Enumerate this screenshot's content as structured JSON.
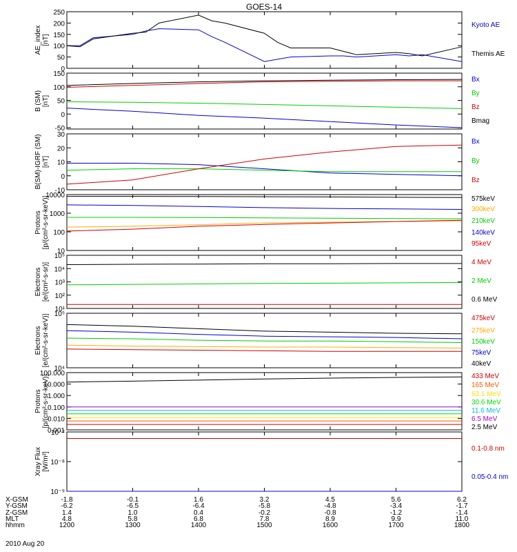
{
  "title": "GOES-14",
  "date_label": "2010 Aug 20",
  "chart_data": [
    {
      "type": "line",
      "ylabel": [
        "AE_index",
        "[nT]"
      ],
      "yscale": "linear",
      "ylim": [
        0,
        250
      ],
      "yticks": [
        0,
        50,
        100,
        150,
        200,
        250
      ],
      "yticklabels": [
        "0",
        "50",
        "100",
        "150",
        "200",
        "250"
      ],
      "series": [
        {
          "name": "Kyoto AE",
          "color": "#0000cc",
          "x": [
            1200,
            1220,
            1240,
            1300,
            1320,
            1340,
            1400,
            1420,
            1440,
            1500,
            1520,
            1540,
            1600,
            1620,
            1640,
            1700,
            1720,
            1740,
            1800
          ],
          "values": [
            100,
            100,
            135,
            150,
            165,
            175,
            170,
            140,
            115,
            30,
            40,
            50,
            55,
            55,
            50,
            60,
            55,
            60,
            30
          ]
        },
        {
          "name": "Themis AE",
          "color": "#000000",
          "x": [
            1200,
            1220,
            1240,
            1300,
            1320,
            1340,
            1400,
            1420,
            1440,
            1500,
            1520,
            1540,
            1600,
            1620,
            1640,
            1700,
            1720,
            1740,
            1800
          ],
          "values": [
            100,
            95,
            130,
            155,
            160,
            200,
            235,
            210,
            200,
            155,
            115,
            90,
            90,
            75,
            60,
            70,
            65,
            55,
            95
          ]
        }
      ]
    },
    {
      "type": "line",
      "ylabel": [
        "B (SM)",
        "[nT]"
      ],
      "yscale": "linear",
      "ylim": [
        -55,
        150
      ],
      "yticks": [
        -50,
        0,
        50,
        100,
        150
      ],
      "yticklabels": [
        "-50",
        "0",
        "50",
        "100",
        "150"
      ],
      "series": [
        {
          "name": "Bx",
          "color": "#0000cc",
          "x": [
            1200,
            1300,
            1400,
            1500,
            1600,
            1700,
            1800
          ],
          "values": [
            22,
            10,
            -5,
            -15,
            -28,
            -40,
            -50
          ]
        },
        {
          "name": "By",
          "color": "#00cc00",
          "x": [
            1200,
            1300,
            1400,
            1500,
            1600,
            1700,
            1800
          ],
          "values": [
            45,
            43,
            40,
            35,
            30,
            25,
            20
          ]
        },
        {
          "name": "Bz",
          "color": "#cc0000",
          "x": [
            1200,
            1300,
            1400,
            1500,
            1600,
            1700,
            1800
          ],
          "values": [
            98,
            105,
            112,
            118,
            120,
            122,
            122
          ]
        },
        {
          "name": "Bmag",
          "color": "#000000",
          "x": [
            1200,
            1300,
            1400,
            1500,
            1600,
            1700,
            1800
          ],
          "values": [
            105,
            112,
            118,
            122,
            124,
            126,
            127
          ]
        }
      ]
    },
    {
      "type": "line",
      "ylabel": [
        "B(SM)-IGRF (SM)",
        "[nT]"
      ],
      "yscale": "linear",
      "ylim": [
        -10,
        30
      ],
      "yticks": [
        -10,
        0,
        10,
        20,
        30
      ],
      "yticklabels": [
        "-10",
        "0",
        "10",
        "20",
        "30"
      ],
      "series": [
        {
          "name": "Bx",
          "color": "#0000cc",
          "x": [
            1200,
            1300,
            1400,
            1500,
            1600,
            1700,
            1800
          ],
          "values": [
            9,
            9,
            8,
            5,
            2,
            1,
            0
          ]
        },
        {
          "name": "By",
          "color": "#00cc00",
          "x": [
            1200,
            1300,
            1400,
            1500,
            1600,
            1700,
            1800
          ],
          "values": [
            4,
            5,
            5,
            4,
            3,
            3,
            3
          ]
        },
        {
          "name": "Bz",
          "color": "#cc0000",
          "x": [
            1200,
            1300,
            1400,
            1500,
            1600,
            1700,
            1800
          ],
          "values": [
            -6,
            -3,
            5,
            12,
            17,
            21,
            22
          ]
        }
      ]
    },
    {
      "type": "line",
      "ylabel": [
        "Protons",
        "[p/(cm²-s-sr-keV)]"
      ],
      "yscale": "log",
      "ylim": [
        10,
        10000
      ],
      "yticks": [
        10,
        100,
        1000,
        10000
      ],
      "yticklabels": [
        "10",
        "100",
        "1000",
        "10000"
      ],
      "series": [
        {
          "name": "575keV",
          "color": "#000000",
          "x": [
            1200,
            1300,
            1400,
            1500,
            1600,
            1700,
            1800
          ],
          "values": [
            8000,
            8000,
            7900,
            7700,
            7500,
            7200,
            7000
          ]
        },
        {
          "name": "300keV",
          "color": "#ffaa00",
          "x": [
            1200,
            1300,
            1400,
            1500,
            1600,
            1700,
            1800
          ],
          "values": [
            180,
            200,
            240,
            300,
            330,
            360,
            390
          ]
        },
        {
          "name": "210keV",
          "color": "#00cc00",
          "x": [
            1200,
            1300,
            1400,
            1500,
            1600,
            1700,
            1800
          ],
          "values": [
            600,
            600,
            590,
            560,
            540,
            520,
            500
          ]
        },
        {
          "name": "140keV",
          "color": "#0000cc",
          "x": [
            1200,
            1300,
            1400,
            1500,
            1600,
            1700,
            1800
          ],
          "values": [
            2800,
            2600,
            2300,
            2000,
            1800,
            1700,
            1600
          ]
        },
        {
          "name": "95keV",
          "color": "#cc0000",
          "x": [
            1200,
            1300,
            1400,
            1500,
            1600,
            1700,
            1800
          ],
          "values": [
            110,
            140,
            200,
            250,
            300,
            360,
            420
          ]
        }
      ]
    },
    {
      "type": "line",
      "ylabel": [
        "Electrons",
        "[e/(cm²-s-sr)]"
      ],
      "yscale": "log",
      "ylim": [
        10,
        100000
      ],
      "yticks": [
        10,
        100,
        1000,
        10000,
        100000
      ],
      "yticklabels": [
        "10¹",
        "10²",
        "10³",
        "10⁴",
        "10⁵"
      ],
      "series": [
        {
          "name": "4 MeV",
          "color": "#cc0000",
          "x": [
            1200,
            1300,
            1400,
            1500,
            1600,
            1700,
            1800
          ],
          "values": [
            20,
            20,
            20,
            20,
            20,
            20,
            20
          ]
        },
        {
          "name": "2 MeV",
          "color": "#00cc00",
          "x": [
            1200,
            1300,
            1400,
            1500,
            1600,
            1700,
            1800
          ],
          "values": [
            600,
            650,
            700,
            760,
            800,
            850,
            900
          ]
        },
        {
          "name": "0.6 MeV",
          "color": "#000000",
          "x": [
            1200,
            1300,
            1400,
            1500,
            1600,
            1700,
            1800
          ],
          "values": [
            20000,
            21000,
            22000,
            23000,
            23000,
            24000,
            24000
          ]
        }
      ]
    },
    {
      "type": "line",
      "ylabel": [
        "Electrons",
        "[e/(cm²-s-sr-keV)]"
      ],
      "yscale": "log",
      "ylim": [
        10000,
        100000
      ],
      "yticks": [
        10000,
        100000
      ],
      "yticklabels": [
        "10⁴",
        "10⁵"
      ],
      "series": [
        {
          "name": "475keV",
          "color": "#cc0000",
          "x": [
            1200,
            1300,
            1400,
            1500,
            1600,
            1700,
            1800
          ],
          "values": [
            22000,
            21500,
            21000,
            20500,
            20000,
            20000,
            20000
          ]
        },
        {
          "name": "275keV",
          "color": "#ffaa00",
          "x": [
            1200,
            1300,
            1400,
            1500,
            1600,
            1700,
            1800
          ],
          "values": [
            26000,
            25000,
            24500,
            24000,
            24000,
            23500,
            23000
          ]
        },
        {
          "name": "150keV",
          "color": "#00cc00",
          "x": [
            1200,
            1300,
            1400,
            1500,
            1600,
            1700,
            1800
          ],
          "values": [
            35000,
            34000,
            32000,
            31000,
            31000,
            30000,
            29000
          ]
        },
        {
          "name": "75keV",
          "color": "#0000cc",
          "x": [
            1200,
            1300,
            1400,
            1500,
            1600,
            1700,
            1800
          ],
          "values": [
            48000,
            45000,
            41000,
            38000,
            37000,
            36000,
            34000
          ]
        },
        {
          "name": "40keV",
          "color": "#000000",
          "x": [
            1200,
            1300,
            1400,
            1500,
            1600,
            1700,
            1800
          ],
          "values": [
            62000,
            58000,
            52000,
            47000,
            45000,
            43000,
            42000
          ]
        }
      ]
    },
    {
      "type": "line",
      "ylabel": [
        "Protons",
        "[p/(cm²-s-sr-keV)]"
      ],
      "yscale": "log",
      "ylim": [
        0.001,
        100
      ],
      "yticks": [
        0.001,
        0.01,
        0.1,
        1,
        10,
        100
      ],
      "yticklabels": [
        "0.001",
        "0.010",
        "0.100",
        "1.000",
        "10.000",
        "100.000"
      ],
      "series": [
        {
          "name": "433 MeV",
          "color": "#cc0000",
          "x": [
            1200,
            1300,
            1400,
            1500,
            1600,
            1700,
            1800
          ],
          "values": [
            0.003,
            0.003,
            0.003,
            0.003,
            0.003,
            0.003,
            0.003
          ]
        },
        {
          "name": "165 MeV",
          "color": "#ff5500",
          "x": [
            1200,
            1300,
            1400,
            1500,
            1600,
            1700,
            1800
          ],
          "values": [
            0.006,
            0.006,
            0.006,
            0.006,
            0.006,
            0.006,
            0.006
          ]
        },
        {
          "name": "63.1 MeV",
          "color": "#ffdd00",
          "x": [
            1200,
            1300,
            1400,
            1500,
            1600,
            1700,
            1800
          ],
          "values": [
            0.012,
            0.012,
            0.012,
            0.012,
            0.012,
            0.012,
            0.012
          ]
        },
        {
          "name": "30.6 MeV",
          "color": "#00dd00",
          "x": [
            1200,
            1300,
            1400,
            1500,
            1600,
            1700,
            1800
          ],
          "values": [
            0.025,
            0.025,
            0.025,
            0.025,
            0.025,
            0.025,
            0.025
          ]
        },
        {
          "name": "11.6 MeV",
          "color": "#00bbdd",
          "x": [
            1200,
            1300,
            1400,
            1500,
            1600,
            1700,
            1800
          ],
          "values": [
            0.05,
            0.05,
            0.05,
            0.05,
            0.05,
            0.05,
            0.05
          ]
        },
        {
          "name": "6.5 MeV",
          "color": "#aa00cc",
          "x": [
            1200,
            1300,
            1400,
            1500,
            1600,
            1700,
            1800
          ],
          "values": [
            0.1,
            0.1,
            0.1,
            0.1,
            0.1,
            0.1,
            0.1
          ]
        },
        {
          "name": "2.5 MeV",
          "color": "#000000",
          "x": [
            1200,
            1300,
            1400,
            1500,
            1600,
            1700,
            1800
          ],
          "values": [
            15,
            18,
            22,
            28,
            33,
            38,
            42
          ]
        }
      ]
    },
    {
      "type": "line",
      "ylabel": [
        "Xray Flux",
        "[W/m²]"
      ],
      "yscale": "log",
      "ylim": [
        1e-09,
        1e-07
      ],
      "yticks": [
        1e-09,
        1e-08,
        1e-07
      ],
      "yticklabels": [
        "10⁻⁹",
        "10⁻⁸",
        "10⁻⁷"
      ],
      "series": [
        {
          "name": "0.1-0.8 nm",
          "color": "#cc0000",
          "x": [
            1200,
            1300,
            1400,
            1500,
            1600,
            1700,
            1800
          ],
          "values": [
            6e-08,
            6e-08,
            6e-08,
            6e-08,
            6e-08,
            6e-08,
            6e-08
          ]
        },
        {
          "name": "0.05-0.4 nm",
          "color": "#0000cc",
          "x": [
            1200,
            1300,
            1400,
            1500,
            1600,
            1700,
            1800
          ],
          "values": [
            1e-09,
            1e-09,
            1e-09,
            1e-09,
            1e-09,
            1e-09,
            1e-09
          ]
        }
      ]
    }
  ],
  "x_axis": {
    "xlim": [
      1200,
      1800
    ],
    "tick_positions": [
      1200,
      1300,
      1400,
      1500,
      1600,
      1700,
      1800
    ],
    "rows": [
      {
        "label": "X-GSM",
        "values": [
          "-1.8",
          "-0.1",
          "1.6",
          "3.2",
          "4.5",
          "5.6",
          "6.2"
        ]
      },
      {
        "label": "Y-GSM",
        "values": [
          "-6.2",
          "-6.5",
          "-6.4",
          "-5.8",
          "-4.8",
          "-3.4",
          "-1.7"
        ]
      },
      {
        "label": "Z-GSM",
        "values": [
          "1.4",
          "1.0",
          "0.4",
          "-0.2",
          "-0.8",
          "-1.2",
          "-1.4"
        ]
      },
      {
        "label": "MLT",
        "values": [
          "4.8",
          "5.8",
          "6.8",
          "7.8",
          "8.9",
          "9.9",
          "11.0"
        ]
      },
      {
        "label": "hhmm",
        "values": [
          "1200",
          "1300",
          "1400",
          "1500",
          "1600",
          "1700",
          "1800"
        ]
      }
    ]
  }
}
